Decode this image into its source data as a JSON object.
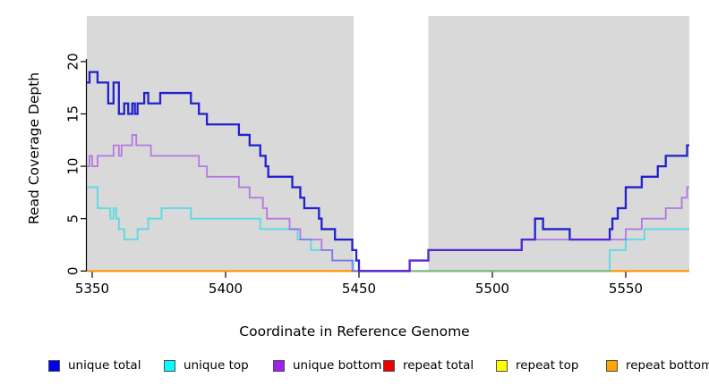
{
  "figure": {
    "xlabel": "Coordinate in Reference Genome",
    "ylabel": "Read Coverage Depth"
  },
  "chart_data": {
    "type": "line",
    "subtype": "step",
    "title": "",
    "xlabel": "Coordinate in Reference Genome",
    "ylabel": "Read Coverage Depth",
    "xlim": [
      5348,
      5574
    ],
    "ylim": [
      0,
      24.3
    ],
    "x_ticks": [
      5350,
      5400,
      5450,
      5500,
      5550
    ],
    "y_ticks": [
      0,
      5,
      10,
      15,
      20
    ],
    "grid": false,
    "plot_background": "#d9d9d9",
    "gap_band": {
      "x_start": 5448,
      "x_end": 5476,
      "color": "#ffffff"
    },
    "legend_position": "bottom",
    "series": [
      {
        "name": "unique total",
        "color": "#0000EE",
        "line_color": "rgba(0,0,205,0.85)",
        "width": 2.3,
        "points": [
          [
            5348,
            18
          ],
          [
            5349,
            19
          ],
          [
            5352,
            18
          ],
          [
            5356,
            16
          ],
          [
            5358,
            18
          ],
          [
            5360,
            15
          ],
          [
            5362,
            16
          ],
          [
            5363.5,
            15
          ],
          [
            5365,
            16
          ],
          [
            5366,
            15
          ],
          [
            5367,
            16
          ],
          [
            5369.5,
            17
          ],
          [
            5371,
            16
          ],
          [
            5375.5,
            17
          ],
          [
            5387,
            16
          ],
          [
            5390,
            15
          ],
          [
            5393,
            14
          ],
          [
            5405,
            13
          ],
          [
            5409,
            12
          ],
          [
            5413,
            11
          ],
          [
            5415,
            10
          ],
          [
            5416,
            9
          ],
          [
            5425,
            8
          ],
          [
            5428,
            7
          ],
          [
            5429.5,
            6
          ],
          [
            5435,
            5
          ],
          [
            5436,
            4
          ],
          [
            5441,
            3
          ],
          [
            5447.5,
            2
          ],
          [
            5449,
            1
          ],
          [
            5450,
            0
          ],
          [
            5469,
            1
          ],
          [
            5476,
            2
          ],
          [
            5511,
            3
          ],
          [
            5516,
            5
          ],
          [
            5519,
            4
          ],
          [
            5529,
            3
          ],
          [
            5544,
            4
          ],
          [
            5545,
            5
          ],
          [
            5547,
            6
          ],
          [
            5550,
            8
          ],
          [
            5556,
            9
          ],
          [
            5562,
            10
          ],
          [
            5565,
            11
          ],
          [
            5573,
            12
          ]
        ]
      },
      {
        "name": "unique top",
        "color": "#00FFFF",
        "line_color": "rgba(0,220,235,0.6)",
        "width": 1.8,
        "points": [
          [
            5348,
            8
          ],
          [
            5352,
            6
          ],
          [
            5356.8,
            5
          ],
          [
            5358,
            6
          ],
          [
            5359,
            5
          ],
          [
            5360,
            4
          ],
          [
            5362,
            3
          ],
          [
            5367,
            4
          ],
          [
            5371,
            5
          ],
          [
            5376,
            6
          ],
          [
            5387,
            5
          ],
          [
            5413,
            4
          ],
          [
            5427,
            3
          ],
          [
            5432,
            2
          ],
          [
            5440,
            1
          ],
          [
            5448,
            0
          ],
          [
            5544,
            2
          ],
          [
            5550,
            3
          ],
          [
            5557,
            4
          ]
        ]
      },
      {
        "name": "unique bottom",
        "color": "#A020F0",
        "line_color": "rgba(150,40,235,0.55)",
        "width": 1.8,
        "points": [
          [
            5348,
            10
          ],
          [
            5349,
            11
          ],
          [
            5350,
            10
          ],
          [
            5352,
            11
          ],
          [
            5358,
            12
          ],
          [
            5360,
            11
          ],
          [
            5361,
            12
          ],
          [
            5365,
            13
          ],
          [
            5366.5,
            12
          ],
          [
            5372,
            11
          ],
          [
            5390,
            10
          ],
          [
            5393,
            9
          ],
          [
            5405,
            8
          ],
          [
            5409,
            7
          ],
          [
            5414,
            6
          ],
          [
            5415.5,
            5
          ],
          [
            5424,
            4
          ],
          [
            5428,
            3
          ],
          [
            5436,
            2
          ],
          [
            5440,
            1
          ],
          [
            5447.5,
            0
          ],
          [
            5469,
            1
          ],
          [
            5476,
            2
          ],
          [
            5511,
            3
          ],
          [
            5550,
            4
          ],
          [
            5556,
            5
          ],
          [
            5565,
            6
          ],
          [
            5571,
            7
          ],
          [
            5573,
            8
          ]
        ]
      },
      {
        "name": "repeat total",
        "color": "#EE0000",
        "line_color": "rgba(221,0,0,1)",
        "width": 1.6,
        "points": [
          [
            5348,
            0
          ]
        ]
      },
      {
        "name": "repeat top",
        "color": "#FFFF00",
        "line_color": "rgba(255,255,0,1)",
        "width": 1.6,
        "points": [
          [
            5348,
            0
          ]
        ]
      },
      {
        "name": "repeat bottom",
        "color": "#FFA500",
        "line_color": "rgba(255,145,0,0.95)",
        "width": 2.2,
        "points": [
          [
            5348,
            0
          ]
        ]
      }
    ]
  },
  "legend": {
    "items": [
      {
        "label": "unique total",
        "color": "#0000EE"
      },
      {
        "label": "unique top",
        "color": "#00FFFF"
      },
      {
        "label": "unique bottom",
        "color": "#A020F0"
      },
      {
        "label": "repeat total",
        "color": "#EE0000"
      },
      {
        "label": "repeat top",
        "color": "#FFFF00"
      },
      {
        "label": "repeat bottom",
        "color": "#FFA500"
      }
    ]
  }
}
